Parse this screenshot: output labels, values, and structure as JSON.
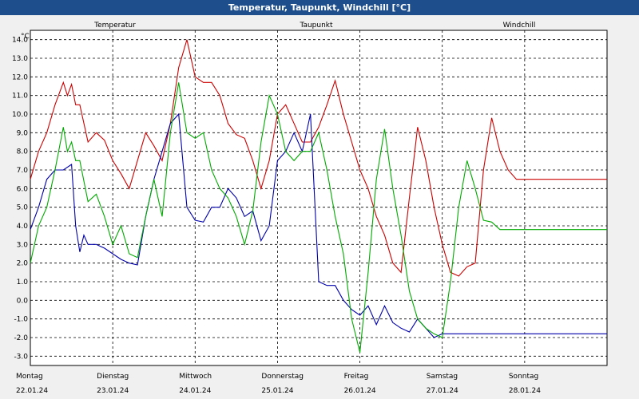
{
  "chart_data": {
    "type": "line",
    "title": "Temperatur, Taupunkt, Windchill [°C]",
    "ylabel": "°C",
    "ylim": [
      -3.5,
      14.5
    ],
    "yticks": [
      "-3.0",
      "-2.0",
      "-1.0",
      "0.0",
      "1.0",
      "2.0",
      "3.0",
      "4.0",
      "5.0",
      "6.0",
      "7.0",
      "8.0",
      "9.0",
      "10.0",
      "11.0",
      "12.0",
      "13.0",
      "14.0"
    ],
    "x_axis": [
      {
        "day": "Montag",
        "date": "22.01.24"
      },
      {
        "day": "Dienstag",
        "date": "23.01.24"
      },
      {
        "day": "Mittwoch",
        "date": "24.01.24"
      },
      {
        "day": "Donnerstag",
        "date": "25.01.24"
      },
      {
        "day": "Freitag",
        "date": "26.01.24"
      },
      {
        "day": "Samstag",
        "date": "27.01.24"
      },
      {
        "day": "Sonntag",
        "date": "28.01.24"
      }
    ],
    "xlim": [
      0,
      7
    ],
    "grid": true,
    "legend_placement": "top",
    "series": [
      {
        "name": "Temperatur",
        "color": "#cc0000",
        "x": [
          0,
          0.1,
          0.2,
          0.3,
          0.4,
          0.45,
          0.5,
          0.55,
          0.6,
          0.7,
          0.8,
          0.9,
          1.0,
          1.1,
          1.2,
          1.3,
          1.4,
          1.5,
          1.6,
          1.7,
          1.8,
          1.9,
          2.0,
          2.1,
          2.2,
          2.3,
          2.4,
          2.5,
          2.6,
          2.7,
          2.8,
          2.9,
          3.0,
          3.1,
          3.2,
          3.3,
          3.4,
          3.5,
          3.6,
          3.7,
          3.8,
          3.9,
          4.0,
          4.1,
          4.2,
          4.3,
          4.4,
          4.5,
          4.6,
          4.7,
          4.8,
          4.9,
          5.0,
          5.1,
          5.2,
          5.3,
          5.4,
          5.5,
          5.6,
          5.7,
          5.8,
          5.9,
          6.0,
          6.1,
          6.2,
          6.3,
          6.4,
          6.5,
          6.6,
          6.7,
          6.8,
          6.9,
          7.0
        ],
        "values": [
          6.5,
          8.0,
          9.0,
          10.5,
          11.7,
          11.0,
          11.6,
          10.5,
          10.5,
          8.5,
          9.0,
          8.6,
          7.5,
          6.8,
          6.0,
          7.5,
          9.0,
          8.3,
          7.5,
          9.5,
          12.5,
          14.0,
          12.0,
          11.7,
          11.7,
          11.0,
          9.5,
          8.9,
          8.7,
          7.5,
          6.0,
          7.5,
          10.0,
          10.5,
          9.5,
          8.5,
          8.5,
          9.3,
          10.5,
          11.8,
          10.0,
          8.5,
          7.0,
          6.0,
          4.5,
          3.5,
          2.0,
          1.5,
          5.5,
          9.3,
          7.5,
          5.0,
          3.0,
          1.5,
          1.3,
          1.8,
          2.0,
          7.0,
          9.8,
          8.0,
          7.0,
          6.5,
          6.5,
          6.5,
          6.5,
          6.5,
          6.5,
          6.5,
          6.5,
          6.5,
          6.5,
          6.5,
          6.5
        ]
      },
      {
        "name": "Taupunkt",
        "color": "#0000aa",
        "x": [
          0,
          0.1,
          0.2,
          0.3,
          0.4,
          0.5,
          0.55,
          0.6,
          0.65,
          0.7,
          0.8,
          0.9,
          1.0,
          1.1,
          1.2,
          1.3,
          1.4,
          1.5,
          1.6,
          1.7,
          1.8,
          1.9,
          2.0,
          2.1,
          2.2,
          2.3,
          2.4,
          2.5,
          2.6,
          2.7,
          2.8,
          2.9,
          3.0,
          3.1,
          3.2,
          3.3,
          3.4,
          3.5,
          3.6,
          3.7,
          3.8,
          3.9,
          4.0,
          4.1,
          4.2,
          4.3,
          4.4,
          4.5,
          4.6,
          4.7,
          4.8,
          4.9,
          5.0,
          5.1,
          5.2,
          5.3,
          5.4,
          5.5,
          5.6,
          5.7,
          5.8,
          5.9,
          6.0,
          6.1,
          6.2,
          6.3,
          6.4,
          6.5,
          6.6,
          6.7,
          6.8,
          6.9,
          7.0
        ],
        "values": [
          3.8,
          5.0,
          6.5,
          7.0,
          7.0,
          7.3,
          4.0,
          2.6,
          3.5,
          3.0,
          3.0,
          2.8,
          2.5,
          2.2,
          2.0,
          1.9,
          4.5,
          6.5,
          8.0,
          9.5,
          10.0,
          5.0,
          4.3,
          4.2,
          5.0,
          5.0,
          6.0,
          5.5,
          4.5,
          4.8,
          3.2,
          4.0,
          7.5,
          8.0,
          9.0,
          8.0,
          10.0,
          1.0,
          0.8,
          0.8,
          0.0,
          -0.5,
          -0.8,
          -0.3,
          -1.3,
          -0.3,
          -1.2,
          -1.5,
          -1.7,
          -1.0,
          -1.5,
          -2.0,
          -1.8,
          -1.8,
          -1.8,
          -1.8,
          -1.8,
          -1.8,
          -1.8,
          -1.8,
          -1.8,
          -1.8,
          -1.8,
          -1.8,
          -1.8,
          -1.8,
          -1.8,
          -1.8,
          -1.8,
          -1.8,
          -1.8,
          -1.8,
          -1.8
        ]
      },
      {
        "name": "Windchill",
        "color": "#00aa00",
        "x": [
          0,
          0.1,
          0.2,
          0.3,
          0.4,
          0.45,
          0.5,
          0.55,
          0.6,
          0.7,
          0.8,
          0.9,
          1.0,
          1.1,
          1.2,
          1.3,
          1.4,
          1.5,
          1.6,
          1.7,
          1.8,
          1.9,
          2.0,
          2.1,
          2.2,
          2.3,
          2.4,
          2.5,
          2.6,
          2.7,
          2.8,
          2.9,
          3.0,
          3.1,
          3.2,
          3.3,
          3.4,
          3.5,
          3.6,
          3.7,
          3.8,
          3.9,
          4.0,
          4.1,
          4.2,
          4.3,
          4.4,
          4.5,
          4.6,
          4.7,
          4.8,
          4.9,
          5.0,
          5.1,
          5.2,
          5.3,
          5.4,
          5.5,
          5.6,
          5.7,
          5.8,
          5.9,
          6.0,
          6.1,
          6.2,
          6.3,
          6.4,
          6.5,
          6.6,
          6.7,
          6.8,
          6.9,
          7.0
        ],
        "values": [
          2.0,
          4.0,
          5.0,
          7.0,
          9.3,
          8.0,
          8.5,
          7.5,
          7.5,
          5.3,
          5.7,
          4.5,
          3.0,
          4.0,
          2.5,
          2.3,
          4.5,
          6.5,
          4.5,
          9.0,
          11.7,
          9.0,
          8.7,
          9.0,
          7.0,
          6.0,
          5.5,
          4.5,
          3.0,
          4.8,
          8.5,
          11.0,
          10.0,
          8.0,
          7.5,
          8.0,
          8.0,
          9.0,
          7.0,
          4.5,
          2.5,
          -1.0,
          -2.8,
          1.5,
          6.5,
          9.2,
          6.0,
          3.5,
          0.5,
          -1.0,
          -1.5,
          -1.8,
          -2.0,
          1.0,
          5.0,
          7.5,
          6.0,
          4.3,
          4.2,
          3.8,
          3.8,
          3.8,
          3.8,
          3.8,
          3.8,
          3.8,
          3.8,
          3.8,
          3.8,
          3.8,
          3.8,
          3.8,
          3.8
        ]
      }
    ]
  }
}
